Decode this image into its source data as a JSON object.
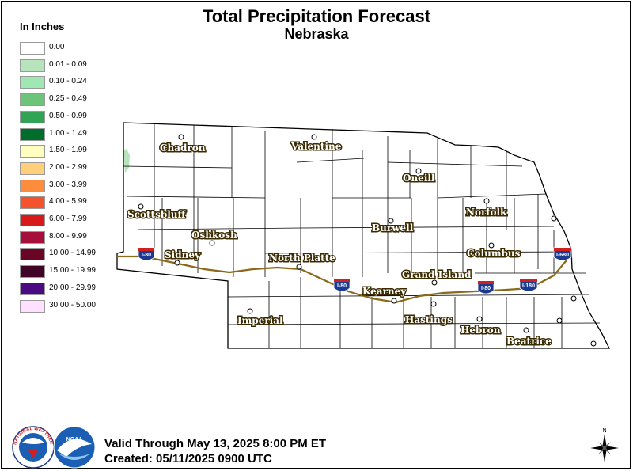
{
  "title": "Total Precipitation Forecast",
  "subtitle": "Nebraska",
  "legend": {
    "title": "In Inches",
    "entries": [
      {
        "label": "0.00",
        "color": "#ffffff"
      },
      {
        "label": "0.01 - 0.09",
        "color": "#b7e3bd"
      },
      {
        "label": "0.10 - 0.24",
        "color": "#9fe8b4"
      },
      {
        "label": "0.25 - 0.49",
        "color": "#6cc47a"
      },
      {
        "label": "0.50 - 0.99",
        "color": "#31a354"
      },
      {
        "label": "1.00 - 1.49",
        "color": "#006d2c"
      },
      {
        "label": "1.50 - 1.99",
        "color": "#ffffc0"
      },
      {
        "label": "2.00 - 2.99",
        "color": "#ffcf7a"
      },
      {
        "label": "3.00 - 3.99",
        "color": "#fd8d3c"
      },
      {
        "label": "4.00 - 5.99",
        "color": "#f4522c"
      },
      {
        "label": "6.00 - 7.99",
        "color": "#d7191c"
      },
      {
        "label": "8.00 - 9.99",
        "color": "#a50f3a"
      },
      {
        "label": "10.00 - 14.99",
        "color": "#6b0526"
      },
      {
        "label": "15.00 - 19.99",
        "color": "#400526"
      },
      {
        "label": "20.00 - 29.99",
        "color": "#4b0a82"
      },
      {
        "label": "30.00 - 50.00",
        "color": "#ffe0ff"
      }
    ]
  },
  "cities": [
    "Chadron",
    "Valentine",
    "Oneill",
    "Scottsbluff",
    "Norfolk",
    "Burwell",
    "Oshkosh",
    "Sidney",
    "Columbus",
    "North Platte",
    "Grand Island",
    "Kearney",
    "Hastings",
    "Imperial",
    "Hebron",
    "Beatrice"
  ],
  "highways": [
    "I-80",
    "I-80",
    "I-80",
    "I-180",
    "I-680"
  ],
  "footer": {
    "valid": "Valid Through May 13, 2025 8:00 PM ET",
    "created": "Created: 05/11/2025 0900 UTC"
  },
  "logos": {
    "nws": "NATIONAL WEATHER SERVICE",
    "noaa": "NOAA"
  },
  "compass": {
    "north": "N"
  }
}
